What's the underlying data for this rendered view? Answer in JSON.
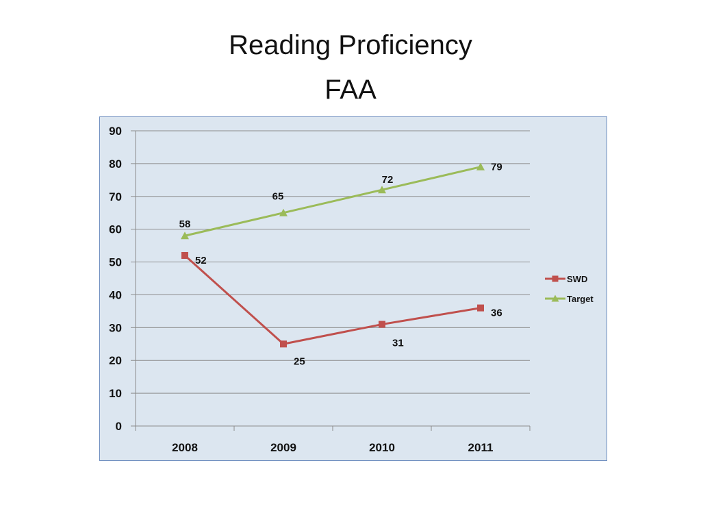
{
  "slide": {
    "title_line1": "Reading Proficiency",
    "title_line2": "FAA"
  },
  "chart_data": {
    "type": "line",
    "categories": [
      "2008",
      "2009",
      "2010",
      "2011"
    ],
    "series": [
      {
        "name": "SWD",
        "values": [
          52,
          25,
          31,
          36
        ],
        "color": "#c0504d",
        "marker": "square"
      },
      {
        "name": "Target",
        "values": [
          58,
          65,
          72,
          79
        ],
        "color": "#9bbb59",
        "marker": "triangle"
      }
    ],
    "ylim": [
      0,
      90
    ],
    "yticks": [
      0,
      10,
      20,
      30,
      40,
      50,
      60,
      70,
      80,
      90
    ],
    "grid": true,
    "legend": "right",
    "data_labels": true,
    "xlabel": "",
    "ylabel": "",
    "colors": {
      "plot_background": "#dce6f0",
      "frame_border": "#6f8fc0",
      "gridline": "#8c8c8c"
    }
  }
}
